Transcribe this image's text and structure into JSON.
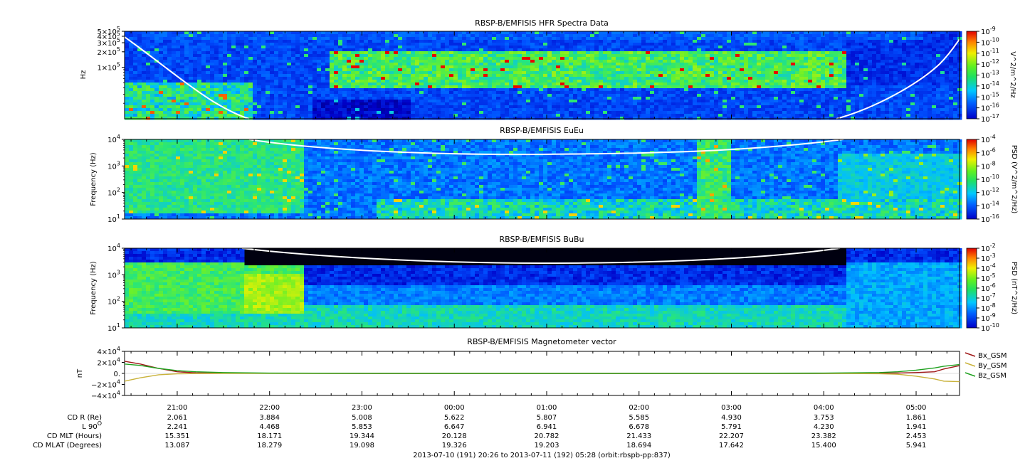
{
  "panels": [
    {
      "id": "hfr",
      "title": "RBSP-B/EMFISIS  HFR Spectra Data",
      "ylabel": "Hz",
      "yscale": "log",
      "ylim": [
        10000,
        500000
      ],
      "ytick_labels": [
        {
          "value": 500000,
          "label": "5×10",
          "sup": "5"
        },
        {
          "value": 400000,
          "label": "4×10",
          "sup": "5"
        },
        {
          "value": 300000,
          "label": "3×10",
          "sup": "5"
        },
        {
          "value": 200000,
          "label": "2×10",
          "sup": "5"
        },
        {
          "value": 100000,
          "label": "1×10",
          "sup": "5"
        }
      ],
      "colorbar_label": "V^2/m^2/Hz",
      "colorbar_exponents": [
        "-9",
        "-10",
        "-11",
        "-12",
        "-13",
        "-14",
        "-15",
        "-16",
        "-17"
      ],
      "colorbar_base": "10"
    },
    {
      "id": "eueu",
      "title": "RBSP-B/EMFISIS  EuEu",
      "ylabel": "Frequency (Hz)",
      "yscale": "log",
      "ylim": [
        10,
        10000
      ],
      "ytick_labels": [
        {
          "value": 10000,
          "label": "10",
          "sup": "4"
        },
        {
          "value": 1000,
          "label": "10",
          "sup": "3"
        },
        {
          "value": 100,
          "label": "10",
          "sup": "2"
        },
        {
          "value": 10,
          "label": "10",
          "sup": "1"
        }
      ],
      "colorbar_label": "PSD (V^2/m^2/Hz)",
      "colorbar_exponents": [
        "-4",
        "-6",
        "-8",
        "-10",
        "-12",
        "-14",
        "-16"
      ],
      "colorbar_base": "10"
    },
    {
      "id": "bubu",
      "title": "RBSP-B/EMFISIS  BuBu",
      "ylabel": "Frequency (Hz)",
      "yscale": "log",
      "ylim": [
        10,
        10000
      ],
      "ytick_labels": [
        {
          "value": 10000,
          "label": "10",
          "sup": "4"
        },
        {
          "value": 1000,
          "label": "10",
          "sup": "3"
        },
        {
          "value": 100,
          "label": "10",
          "sup": "2"
        },
        {
          "value": 10,
          "label": "10",
          "sup": "1"
        }
      ],
      "colorbar_label": "PSD (nT^2/Hz)",
      "colorbar_exponents": [
        "-2",
        "-3",
        "-4",
        "-5",
        "-6",
        "-7",
        "-8",
        "-9",
        "-10"
      ],
      "colorbar_base": "10"
    }
  ],
  "chart_data": {
    "type": "line",
    "title": "RBSP-B/EMFISIS  Magnetometer vector",
    "ylabel": "nT",
    "ylim": [
      -40000,
      40000
    ],
    "ytick_labels": [
      {
        "value": 40000,
        "label": "4×10",
        "sup": "4"
      },
      {
        "value": 20000,
        "label": "2×10",
        "sup": "4"
      },
      {
        "value": 0,
        "label": "0.",
        "sup": ""
      },
      {
        "value": -20000,
        "label": "−2×10",
        "sup": "4"
      },
      {
        "value": -40000,
        "label": "−4×10",
        "sup": "4"
      }
    ],
    "x_hours": [
      20.43,
      20.6,
      20.8,
      21.0,
      21.2,
      21.5,
      22.0,
      23.0,
      24.0,
      25.0,
      26.0,
      27.0,
      28.0,
      28.6,
      28.8,
      29.0,
      29.2,
      29.3,
      29.47
    ],
    "series": [
      {
        "name": "Bx_GSM",
        "color": "#a01818",
        "values": [
          22000,
          17000,
          9000,
          3000,
          1000,
          500,
          200,
          0,
          0,
          0,
          0,
          0,
          0,
          500,
          800,
          1500,
          3000,
          8000,
          14000
        ]
      },
      {
        "name": "By_GSM",
        "color": "#c9b23a",
        "values": [
          -14000,
          -8000,
          -2500,
          -800,
          -300,
          -100,
          0,
          0,
          0,
          0,
          0,
          0,
          0,
          -500,
          -1500,
          -5000,
          -10000,
          -14000,
          -15000
        ]
      },
      {
        "name": "Bz_GSM",
        "color": "#1fa11f",
        "values": [
          17000,
          14500,
          9000,
          5000,
          3000,
          1500,
          500,
          200,
          100,
          100,
          100,
          200,
          500,
          1500,
          3000,
          6000,
          10000,
          13000,
          16000
        ]
      }
    ],
    "xlim_hours": [
      20.43,
      29.47
    ],
    "xtick_labels": [
      "21:00",
      "22:00",
      "23:00",
      "00:00",
      "01:00",
      "02:00",
      "03:00",
      "04:00",
      "05:00"
    ],
    "xtick_hours": [
      21,
      22,
      23,
      24,
      25,
      26,
      27,
      28,
      29
    ]
  },
  "ephemeris": {
    "rows": [
      {
        "label": "CD R (Re)",
        "values": [
          "2.061",
          "3.884",
          "5.008",
          "5.622",
          "5.807",
          "5.585",
          "4.930",
          "3.753",
          "1.861"
        ]
      },
      {
        "label": "L 90",
        "label_sup": "O",
        "values": [
          "2.241",
          "4.468",
          "5.853",
          "6.647",
          "6.941",
          "6.678",
          "5.791",
          "4.230",
          "1.941"
        ]
      },
      {
        "label": "CD MLT (Hours)",
        "values": [
          "15.351",
          "18.171",
          "19.344",
          "20.128",
          "20.782",
          "21.433",
          "22.207",
          "23.382",
          "2.453"
        ]
      },
      {
        "label": "CD MLAT (Degrees)",
        "values": [
          "13.087",
          "18.279",
          "19.098",
          "19.326",
          "19.203",
          "18.694",
          "17.642",
          "15.400",
          "5.941"
        ]
      }
    ]
  },
  "footer": "2013-07-10 (191) 20:26 to 2013-07-11 (192) 05:28 (orbit:rbspb-pp:837)"
}
